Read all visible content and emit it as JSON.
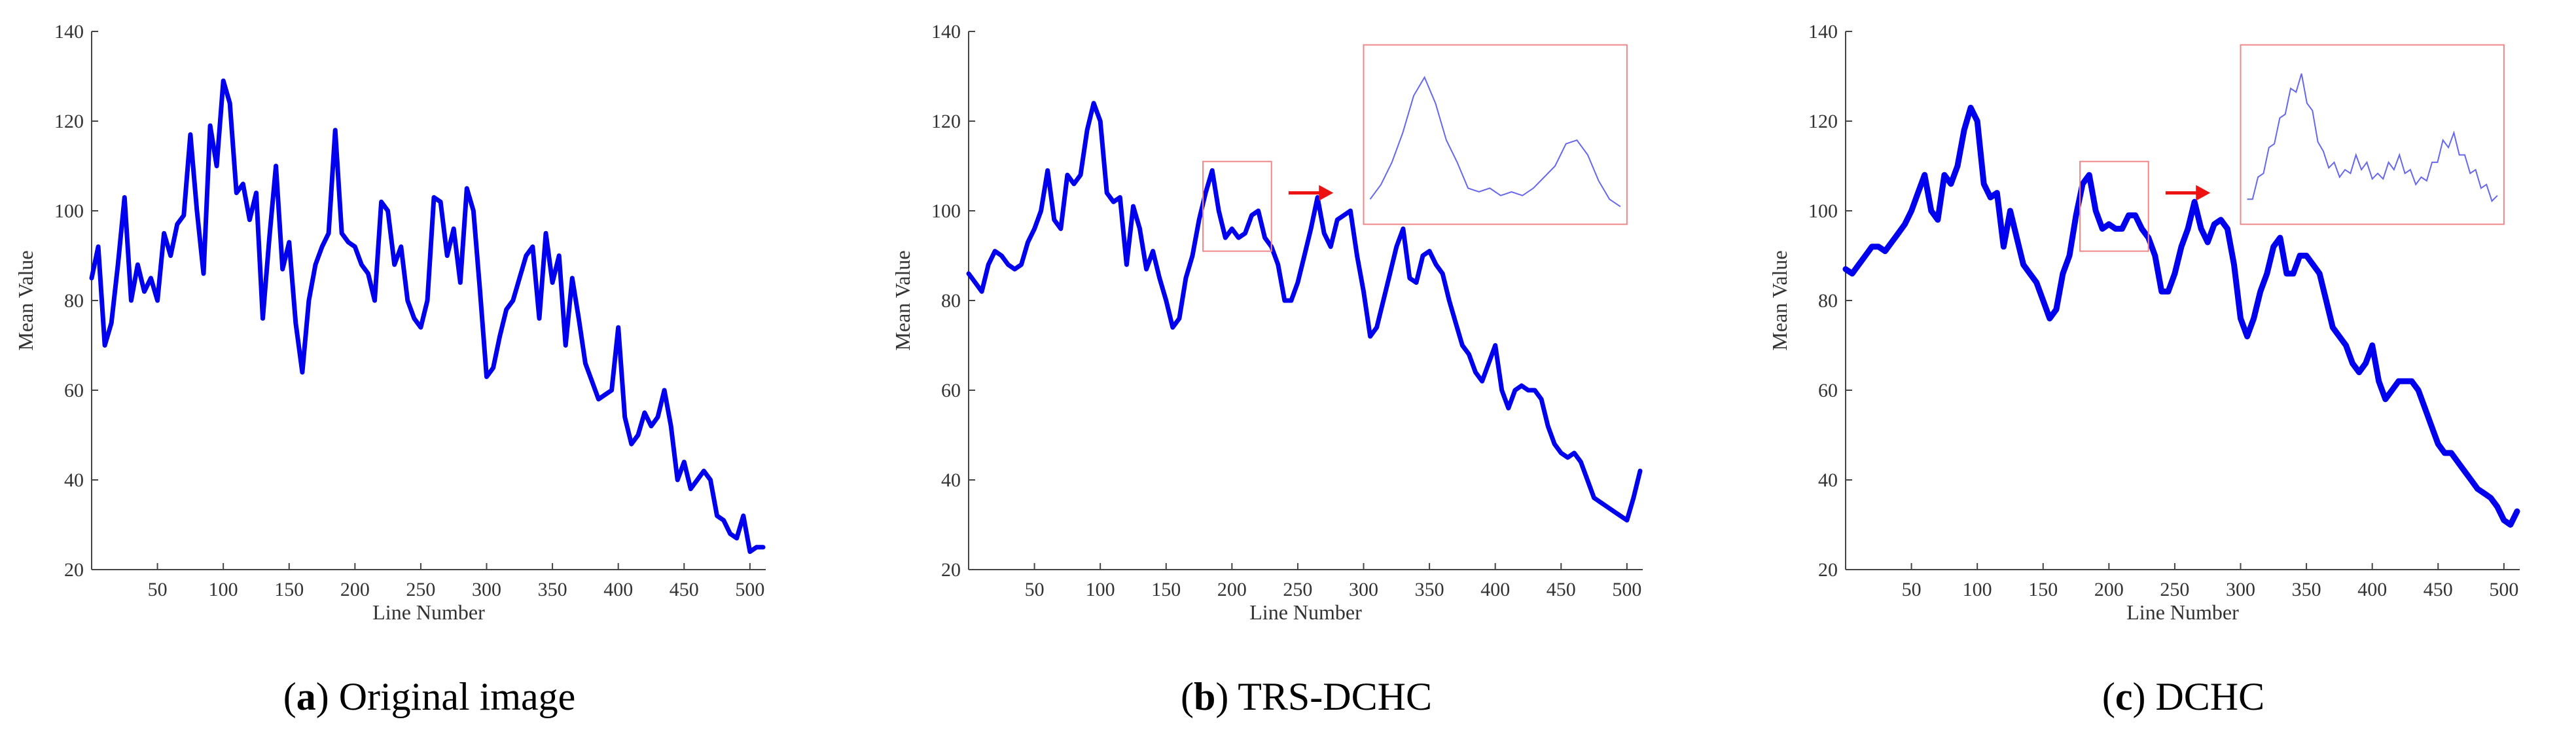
{
  "chart_data": [
    {
      "type": "line",
      "xlabel": "Line Number",
      "ylabel": "Mean Value",
      "xlim": [
        0,
        512
      ],
      "ylim": [
        20,
        140
      ],
      "xticks": [
        "50",
        "100",
        "150",
        "200",
        "250",
        "300",
        "350",
        "400",
        "450",
        "500"
      ],
      "yticks": [
        "20",
        "40",
        "60",
        "80",
        "100",
        "120",
        "140"
      ],
      "grid": false,
      "line_color": "#0000ee",
      "caption_letter": "a",
      "caption_text": " Original image",
      "series": [
        {
          "x": [
            0,
            5,
            10,
            15,
            20,
            25,
            30,
            35,
            40,
            45,
            50,
            55,
            60,
            65,
            70,
            75,
            80,
            85,
            90,
            95,
            100,
            105,
            110,
            115,
            120,
            125,
            130,
            135,
            140,
            145,
            150,
            155,
            160,
            165,
            170,
            175,
            180,
            185,
            190,
            195,
            200,
            205,
            210,
            215,
            220,
            225,
            230,
            235,
            240,
            245,
            250,
            255,
            260,
            265,
            270,
            275,
            280,
            285,
            290,
            295,
            300,
            305,
            310,
            315,
            320,
            325,
            330,
            335,
            340,
            345,
            350,
            355,
            360,
            365,
            370,
            375,
            380,
            385,
            390,
            395,
            400,
            405,
            410,
            415,
            420,
            425,
            430,
            435,
            440,
            445,
            450,
            455,
            460,
            465,
            470,
            475,
            480,
            485,
            490,
            495,
            500,
            505,
            510
          ],
          "values": [
            85,
            92,
            70,
            75,
            88,
            103,
            80,
            88,
            82,
            85,
            80,
            95,
            90,
            97,
            99,
            117,
            100,
            86,
            119,
            110,
            129,
            124,
            104,
            106,
            98,
            104,
            76,
            94,
            110,
            87,
            93,
            75,
            64,
            80,
            88,
            92,
            95,
            118,
            95,
            93,
            92,
            88,
            86,
            80,
            102,
            100,
            88,
            92,
            80,
            76,
            74,
            80,
            103,
            102,
            90,
            96,
            84,
            105,
            100,
            82,
            63,
            65,
            72,
            78,
            80,
            85,
            90,
            92,
            76,
            95,
            84,
            90,
            70,
            85,
            76,
            66,
            62,
            58,
            59,
            60,
            74,
            54,
            48,
            50,
            55,
            52,
            54,
            60,
            52,
            40,
            44,
            38,
            40,
            42,
            40,
            32,
            31,
            28,
            27,
            32,
            24,
            25,
            25
          ]
        }
      ]
    },
    {
      "type": "line",
      "xlabel": "Line Number",
      "ylabel": "Mean Value",
      "xlim": [
        0,
        512
      ],
      "ylim": [
        20,
        140
      ],
      "xticks": [
        "50",
        "100",
        "150",
        "200",
        "250",
        "300",
        "350",
        "400",
        "450",
        "500"
      ],
      "yticks": [
        "20",
        "40",
        "60",
        "80",
        "100",
        "120",
        "140"
      ],
      "grid": false,
      "line_color": "#0000ee",
      "box_color": "#ee8888",
      "arrow_color": "#ee1111",
      "caption_letter": "b",
      "caption_text": " TRS-DCHC",
      "series": [
        {
          "x": [
            0,
            5,
            10,
            15,
            20,
            25,
            30,
            35,
            40,
            45,
            50,
            55,
            60,
            65,
            70,
            75,
            80,
            85,
            90,
            95,
            100,
            105,
            110,
            115,
            120,
            125,
            130,
            135,
            140,
            145,
            150,
            155,
            160,
            165,
            170,
            175,
            180,
            185,
            190,
            195,
            200,
            205,
            210,
            215,
            220,
            225,
            230,
            235,
            240,
            245,
            250,
            255,
            260,
            265,
            270,
            275,
            280,
            285,
            290,
            295,
            300,
            305,
            310,
            315,
            320,
            325,
            330,
            335,
            340,
            345,
            350,
            355,
            360,
            365,
            370,
            375,
            380,
            385,
            390,
            395,
            400,
            405,
            410,
            415,
            420,
            425,
            430,
            435,
            440,
            445,
            450,
            455,
            460,
            465,
            470,
            475,
            480,
            485,
            490,
            495,
            500,
            505,
            510
          ],
          "values": [
            86,
            84,
            82,
            88,
            91,
            90,
            88,
            87,
            88,
            93,
            96,
            100,
            109,
            98,
            96,
            108,
            106,
            108,
            118,
            124,
            120,
            104,
            102,
            103,
            88,
            101,
            96,
            87,
            91,
            85,
            80,
            74,
            76,
            85,
            90,
            98,
            104,
            109,
            100,
            94,
            96,
            94,
            95,
            99,
            100,
            94,
            92,
            88,
            80,
            80,
            84,
            90,
            96,
            103,
            95,
            92,
            98,
            99,
            100,
            90,
            82,
            72,
            74,
            80,
            86,
            92,
            96,
            85,
            84,
            90,
            91,
            88,
            86,
            80,
            75,
            70,
            68,
            64,
            62,
            66,
            70,
            60,
            56,
            60,
            61,
            60,
            60,
            58,
            52,
            48,
            46,
            45,
            46,
            44,
            40,
            36,
            35,
            34,
            33,
            32,
            31,
            36,
            42
          ]
        }
      ],
      "inset": {
        "values": [
          100,
          104,
          110,
          118,
          128,
          133,
          126,
          116,
          110,
          103,
          102,
          103,
          101,
          102,
          101,
          103,
          106,
          109,
          115,
          116,
          112,
          105,
          100,
          98
        ]
      }
    },
    {
      "type": "line",
      "xlabel": "Line Number",
      "ylabel": "Mean Value",
      "xlim": [
        0,
        512
      ],
      "ylim": [
        20,
        140
      ],
      "xticks": [
        "50",
        "100",
        "150",
        "200",
        "250",
        "300",
        "350",
        "400",
        "450",
        "500"
      ],
      "yticks": [
        "20",
        "40",
        "60",
        "80",
        "100",
        "120",
        "140"
      ],
      "grid": false,
      "line_color": "#0000ee",
      "box_color": "#ee8888",
      "arrow_color": "#ee1111",
      "caption_letter": "c",
      "caption_text": " DCHC",
      "series": [
        {
          "x": [
            0,
            5,
            10,
            15,
            20,
            25,
            30,
            35,
            40,
            45,
            50,
            55,
            60,
            65,
            70,
            75,
            80,
            85,
            90,
            95,
            100,
            105,
            110,
            115,
            120,
            125,
            130,
            135,
            140,
            145,
            150,
            155,
            160,
            165,
            170,
            175,
            180,
            185,
            190,
            195,
            200,
            205,
            210,
            215,
            220,
            225,
            230,
            235,
            240,
            245,
            250,
            255,
            260,
            265,
            270,
            275,
            280,
            285,
            290,
            295,
            300,
            305,
            310,
            315,
            320,
            325,
            330,
            335,
            340,
            345,
            350,
            355,
            360,
            365,
            370,
            375,
            380,
            385,
            390,
            395,
            400,
            405,
            410,
            415,
            420,
            425,
            430,
            435,
            440,
            445,
            450,
            455,
            460,
            465,
            470,
            475,
            480,
            485,
            490,
            495,
            500,
            505,
            510
          ],
          "values": [
            87,
            86,
            88,
            90,
            92,
            92,
            91,
            93,
            95,
            97,
            100,
            104,
            108,
            100,
            98,
            108,
            106,
            110,
            118,
            123,
            120,
            106,
            103,
            104,
            92,
            100,
            94,
            88,
            86,
            84,
            80,
            76,
            78,
            86,
            90,
            99,
            106,
            108,
            100,
            96,
            97,
            96,
            96,
            99,
            99,
            96,
            94,
            90,
            82,
            82,
            86,
            92,
            96,
            102,
            96,
            93,
            97,
            98,
            96,
            88,
            76,
            72,
            76,
            82,
            86,
            92,
            94,
            86,
            86,
            90,
            90,
            88,
            86,
            80,
            74,
            72,
            70,
            66,
            64,
            66,
            70,
            62,
            58,
            60,
            62,
            62,
            62,
            60,
            56,
            52,
            48,
            46,
            46,
            44,
            42,
            40,
            38,
            37,
            36,
            34,
            31,
            30,
            33
          ]
        }
      ],
      "inset": {
        "values": [
          100,
          106,
          114,
          122,
          130,
          134,
          124,
          113,
          110,
          108,
          112,
          110,
          107,
          110,
          112,
          108,
          106,
          110,
          116,
          118,
          112,
          108,
          104,
          101
        ]
      }
    }
  ]
}
